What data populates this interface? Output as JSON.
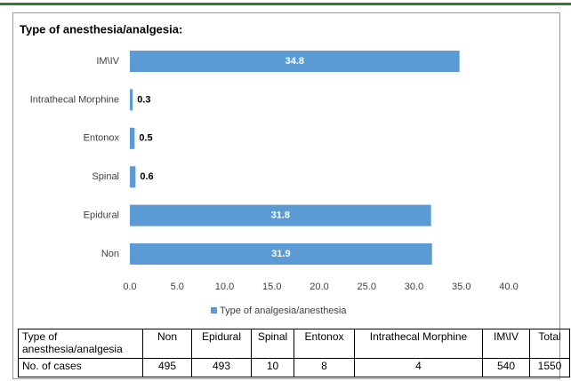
{
  "chart_data": {
    "type": "barh",
    "title": "Type of anesthesia/analgesia:",
    "categories": [
      "IM\\IV",
      "Intrathecal Morphine",
      "Entonox",
      "Spinal",
      "Epidural",
      "Non"
    ],
    "series": [
      {
        "name": "Type of analgesia/anesthesia",
        "color": "#5b9bd5",
        "values": [
          34.8,
          0.3,
          0.5,
          0.6,
          31.8,
          31.9
        ]
      }
    ],
    "xlim": [
      0,
      40
    ],
    "xticks": [
      {
        "value": 0,
        "label": "0.0"
      },
      {
        "value": 5,
        "label": "5.0"
      },
      {
        "value": 10,
        "label": "10.0"
      },
      {
        "value": 15,
        "label": "15.0"
      },
      {
        "value": 20,
        "label": "20.0"
      },
      {
        "value": 25,
        "label": "25.0"
      },
      {
        "value": 30,
        "label": "30.0"
      },
      {
        "value": 35,
        "label": "35.0"
      },
      {
        "value": 40,
        "label": "40.0"
      }
    ],
    "grid": false,
    "legend": "bottom"
  },
  "table": {
    "header": [
      "Type of anesthesia/analgesia",
      "Non",
      "Epidural",
      "Spinal",
      "Entonox",
      "Intrathecal Morphine",
      "IM\\IV",
      "Total"
    ],
    "rows": [
      [
        "No. of cases",
        "495",
        "493",
        "10",
        "8",
        "4",
        "540",
        "1550"
      ]
    ]
  }
}
